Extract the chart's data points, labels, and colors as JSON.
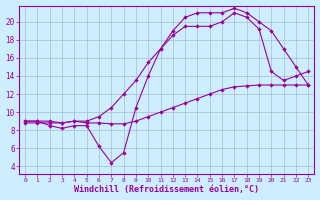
{
  "bg_color": "#cceeff",
  "line_color": "#990099",
  "grid_color": "#aabbcc",
  "xlabel": "Windchill (Refroidissement éolien,°C)",
  "xlabel_color": "#990099",
  "xlabel_fontsize": 6.0,
  "ylabel_ticks": [
    4,
    6,
    8,
    10,
    12,
    14,
    16,
    18,
    20
  ],
  "xlabel_ticks": [
    0,
    1,
    2,
    3,
    4,
    5,
    6,
    7,
    8,
    9,
    10,
    11,
    12,
    13,
    14,
    15,
    16,
    17,
    18,
    19,
    20,
    21,
    22,
    23
  ],
  "xlim": [
    -0.5,
    23.5
  ],
  "ylim": [
    3.2,
    21.8
  ],
  "curve1_x": [
    0,
    1,
    2,
    3,
    4,
    5,
    6,
    7,
    8,
    9,
    10,
    11,
    12,
    13,
    14,
    15,
    16,
    17,
    18,
    19,
    20,
    21,
    22,
    23
  ],
  "curve1_y": [
    9.0,
    9.0,
    8.5,
    8.2,
    8.5,
    8.5,
    6.2,
    4.4,
    5.5,
    10.5,
    14.0,
    17.0,
    19.0,
    20.5,
    21.0,
    21.0,
    21.0,
    21.5,
    21.0,
    20.0,
    19.0,
    17.0,
    15.0,
    13.0
  ],
  "curve2_x": [
    0,
    1,
    2,
    3,
    4,
    5,
    6,
    7,
    8,
    9,
    10,
    11,
    12,
    13,
    14,
    15,
    16,
    17,
    18,
    19,
    20,
    21,
    22,
    23
  ],
  "curve2_y": [
    8.8,
    8.8,
    8.8,
    8.8,
    9.0,
    8.8,
    8.8,
    8.7,
    8.7,
    9.0,
    9.5,
    10.0,
    10.5,
    11.0,
    11.5,
    12.0,
    12.5,
    12.8,
    12.9,
    13.0,
    13.0,
    13.0,
    13.0,
    13.0
  ],
  "curve3_x": [
    0,
    1,
    2,
    3,
    4,
    5,
    6,
    7,
    8,
    9,
    10,
    11,
    12,
    13,
    14,
    15,
    16,
    17,
    18,
    19,
    20,
    21,
    22,
    23
  ],
  "curve3_y": [
    9.0,
    9.0,
    9.0,
    8.8,
    9.0,
    9.0,
    9.5,
    10.5,
    12.0,
    13.5,
    15.5,
    17.0,
    18.5,
    19.5,
    19.5,
    19.5,
    20.0,
    21.0,
    20.5,
    19.2,
    14.5,
    13.5,
    14.0,
    14.5
  ]
}
